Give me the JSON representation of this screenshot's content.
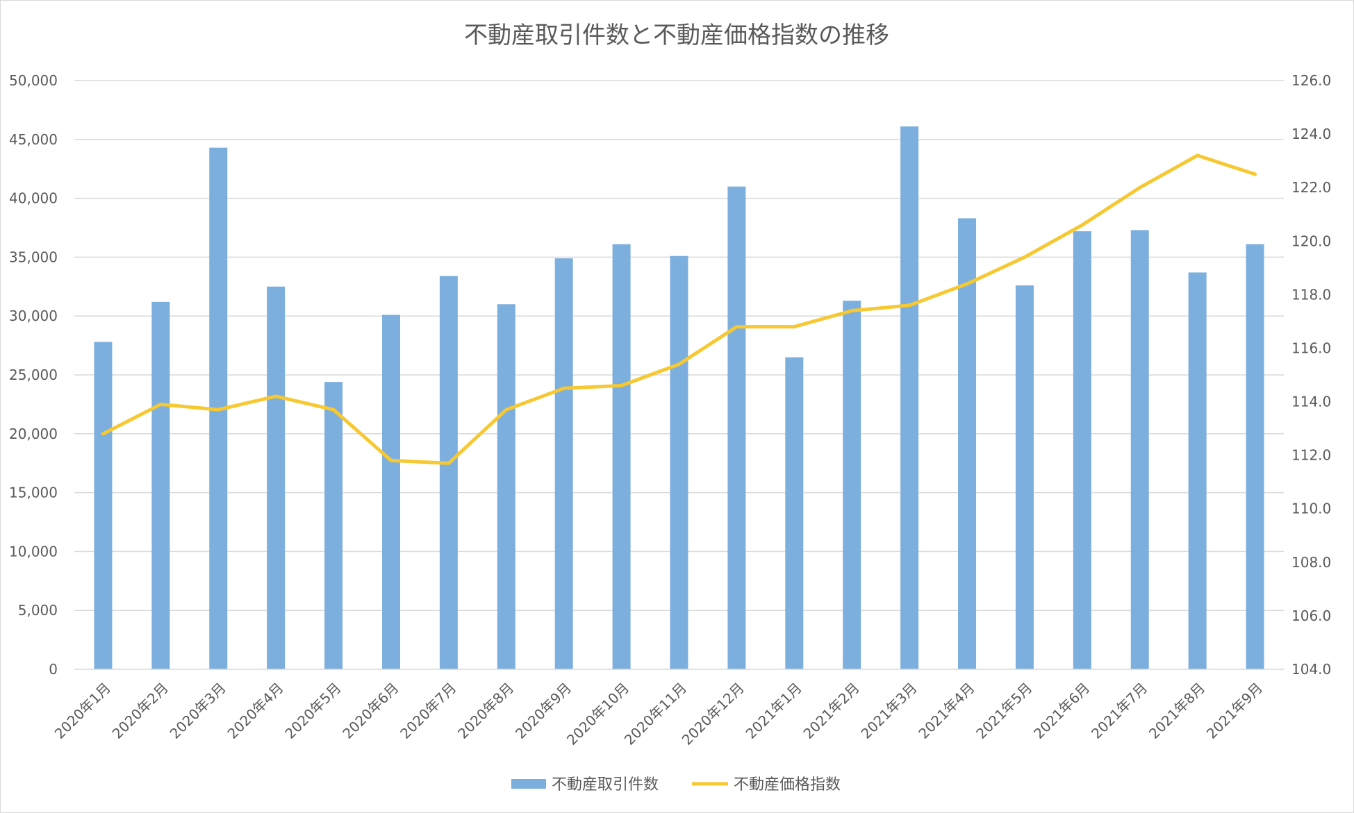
{
  "chart_data": {
    "type": "bar",
    "title": "不動産取引件数と不動産価格指数の推移",
    "categories": [
      "2020年1月",
      "2020年2月",
      "2020年3月",
      "2020年4月",
      "2020年5月",
      "2020年6月",
      "2020年7月",
      "2020年8月",
      "2020年9月",
      "2020年10月",
      "2020年11月",
      "2020年12月",
      "2021年1月",
      "2021年2月",
      "2021年3月",
      "2021年4月",
      "2021年5月",
      "2021年6月",
      "2021年7月",
      "2021年8月",
      "2021年9月"
    ],
    "y_left": {
      "ticks": [
        "0",
        "5,000",
        "10,000",
        "15,000",
        "20,000",
        "25,000",
        "30,000",
        "35,000",
        "40,000",
        "45,000",
        "50,000"
      ],
      "ylim": [
        0,
        50000
      ]
    },
    "y_right": {
      "ticks": [
        "104.0",
        "106.0",
        "108.0",
        "110.0",
        "112.0",
        "114.0",
        "116.0",
        "118.0",
        "120.0",
        "122.0",
        "124.0",
        "126.0"
      ],
      "ylim": [
        104,
        126
      ]
    },
    "series": [
      {
        "name": "不動産取引件数",
        "type": "bar",
        "axis": "left",
        "color": "#7cafdd",
        "values": [
          27800,
          31200,
          44300,
          32500,
          24400,
          30100,
          33400,
          31000,
          34900,
          36100,
          35100,
          41000,
          26500,
          31300,
          46100,
          38300,
          32600,
          37200,
          37300,
          33700,
          36100
        ]
      },
      {
        "name": "不動産価格指数",
        "type": "line",
        "axis": "right",
        "color": "#f6c832",
        "values": [
          112.8,
          113.9,
          113.7,
          114.2,
          113.7,
          111.8,
          111.7,
          113.7,
          114.5,
          114.6,
          115.4,
          116.8,
          116.8,
          117.4,
          117.6,
          118.4,
          119.4,
          120.6,
          122.0,
          123.2,
          122.5
        ]
      }
    ],
    "legend_position": "bottom",
    "grid": true
  }
}
